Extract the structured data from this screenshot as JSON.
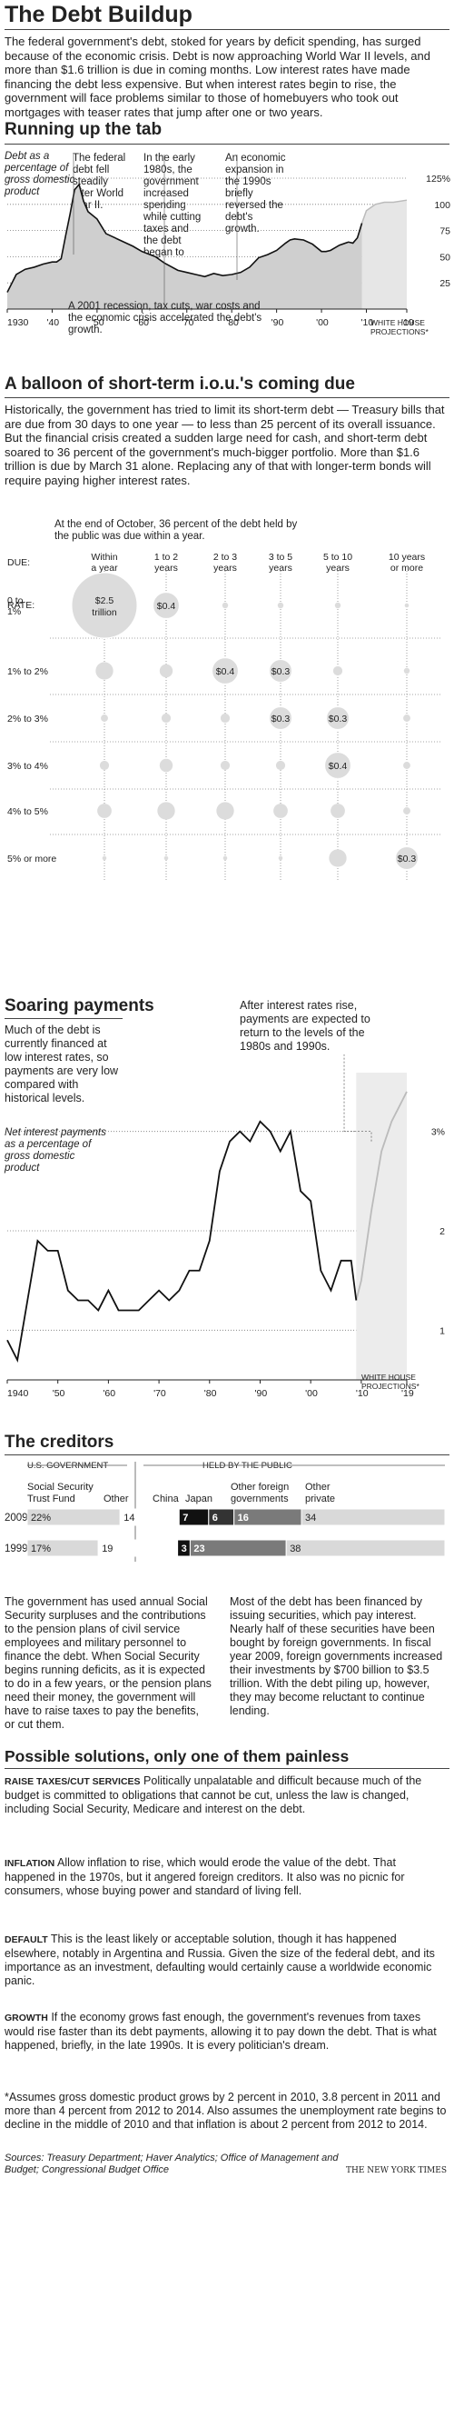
{
  "title": "The Debt Buildup",
  "intro": "The federal government's debt, stoked for years by deficit spending, has surged because of the economic crisis. Debt is now approaching World War II levels, and more than $1.6 trillion is due in coming months. Low interest rates have made financing the debt less expensive. But when interest rates begin to rise, the government will face problems similar to those of homebuyers who took out mortgages with teaser rates that jump after one or two years.",
  "section1": {
    "heading": "Running up the tab",
    "note": "Debt as a percentage of gross domestic product",
    "annotations": [
      "The federal debt fell steadily after World War II.",
      "In the early 1980s, the government increased spending while cutting taxes and the debt began to rise.",
      "An economic expansion in the 1990s briefly reversed the debt's growth.",
      "A 2001 recession, tax cuts, war costs and the economic crisis accelerated the debt's growth."
    ],
    "projection_label": "WHITE HOUSE PROJECTIONS*"
  },
  "section2": {
    "heading": "A balloon of short-term i.o.u.'s coming due",
    "text": "Historically, the government has tried to limit its short-term debt — Treasury bills that are due from 30 days to one year — to less than 25 percent of its overall issuance. But the financial crisis created a sudden large need for cash, and short-term debt soared to 36 percent of the government's much-bigger portfolio. More than $1.6 trillion is due by March 31 alone. Replacing any of that with longer-term bonds will require paying higher interest rates.",
    "callout": "At the end of October, 36 percent of the debt held by the public was due within a year.",
    "due_label": "DUE:",
    "rate_label": "RATE:"
  },
  "section3": {
    "heading": "Soaring payments",
    "text": "Much of the debt is currently financed at low interest rates, so payments are very low compared with historical levels.",
    "note": "Net interest payments as a percentage of gross domestic product",
    "annotation": "After interest rates rise, payments are expected to return to the levels of the 1980s and 1990s.",
    "projection_label": "WHITE HOUSE PROJECTIONS*"
  },
  "section4": {
    "heading": "The creditors",
    "us_gov": "U.S. GOVERNMENT",
    "held_public": "HELD BY THE PUBLIC",
    "col_ss": "Social Security Trust Fund",
    "col_other": "Other",
    "col_china": "China",
    "col_japan": "Japan",
    "col_foreign": "Other foreign governments",
    "col_private": "Other private",
    "rows": [
      {
        "year": "2009",
        "ss": "22%",
        "other": "14",
        "china": "7",
        "japan": "6",
        "foreign": "16",
        "private": "34"
      },
      {
        "year": "1999",
        "ss": "17%",
        "other": "19",
        "china": "3",
        "japan": "",
        "foreign": "23",
        "private": "38"
      }
    ],
    "para_left": "The government has used annual Social Security surpluses and the contributions to the pension plans of civil service employees and military personnel to finance the debt. When Social Security begins running deficits, as it is expected to do in a few years, or the pension plans need their money, the government will have to raise taxes to pay the benefits, or cut them.",
    "para_right": "Most of the debt has been financed by issuing securities, which pay interest. Nearly half of these securities have been bought by foreign governments. In fiscal year 2009, foreign governments increased their investments by $700 billion to $3.5 trillion. With the debt piling up, however, they may become reluctant to continue lending."
  },
  "section5": {
    "heading": "Possible solutions, only one of them painless",
    "items": [
      {
        "label": "RAISE TAXES/CUT SERVICES",
        "text": "Politically unpalatable and difficult because much of the budget is committed to obligations that cannot be cut, unless the law is changed, including Social Security, Medicare and interest on the debt."
      },
      {
        "label": "INFLATION",
        "text": "Allow inflation to rise, which would erode the value of the debt. That happened in the 1970s, but it angered foreign creditors. It also was no picnic for consumers, whose buying power and standard of living fell."
      },
      {
        "label": "DEFAULT",
        "text": "This is the least likely or acceptable solution, though it has happened elsewhere, notably in Argentina and Russia. Given the size of the federal debt, and its importance as an investment, defaulting would certainly cause a worldwide economic panic."
      },
      {
        "label": "GROWTH",
        "text": "If the economy grows fast enough, the government's revenues from taxes would rise faster than its debt payments, allowing it to pay down the debt. That is what happened, briefly, in the late 1990s. It is every politician's dream."
      }
    ],
    "footnote": "*Assumes gross domestic product grows by 2 percent in 2010, 3.8 percent in 2011 and more than 4 percent from 2012 to 2014. Also assumes the unemployment rate begins to decline in the middle of 2010 and that inflation is about 2 percent from 2012 to 2014.",
    "sources": "Sources: Treasury Department; Haver Analytics; Office of Management and Budget; Congressional Budget Office",
    "credit": "THE NEW YORK TIMES"
  },
  "chart_data": [
    {
      "type": "area",
      "xlim": [
        1930,
        2019
      ],
      "ylim": [
        0,
        125
      ],
      "x_ticks": [
        "1930",
        "'40",
        "'50",
        "'60",
        "'70",
        "'80",
        "'90",
        "'00",
        "'10",
        "'19"
      ],
      "y_ticks": [
        "125%",
        "100",
        "75",
        "50",
        "25"
      ],
      "x": [
        1930,
        1932,
        1934,
        1936,
        1938,
        1940,
        1941,
        1942,
        1943,
        1944,
        1945,
        1946,
        1947,
        1948,
        1950,
        1952,
        1955,
        1958,
        1960,
        1963,
        1965,
        1968,
        1970,
        1972,
        1974,
        1976,
        1978,
        1980,
        1982,
        1984,
        1986,
        1988,
        1990,
        1992,
        1993,
        1994,
        1996,
        1998,
        2000,
        2001,
        2002,
        2004,
        2006,
        2007,
        2008,
        2009
      ],
      "values": [
        16,
        33,
        38,
        40,
        43,
        45,
        45,
        48,
        70,
        91,
        114,
        119,
        103,
        93,
        86,
        72,
        66,
        60,
        55,
        50,
        44,
        37,
        35,
        33,
        31,
        34,
        32,
        33,
        35,
        40,
        49,
        52,
        56,
        63,
        66,
        67,
        66,
        62,
        55,
        55,
        56,
        61,
        64,
        63,
        68,
        82
      ],
      "projection": {
        "x": [
          2009,
          2010,
          2012,
          2014,
          2016,
          2019
        ],
        "values": [
          82,
          94,
          100,
          102,
          102,
          104
        ]
      }
    },
    {
      "type": "bubble",
      "categories": [
        "Within a year",
        "1 to 2 years",
        "2 to 3 years",
        "3 to 5 years",
        "5 to 10 years",
        "10 years or more"
      ],
      "rows": [
        "0 to 1%",
        "1% to 2%",
        "2% to 3%",
        "3% to 4%",
        "4% to 5%",
        "5% or more"
      ],
      "values": [
        [
          2.5,
          0.4,
          0.02,
          0.02,
          0.02,
          0.01
        ],
        [
          0.18,
          0.1,
          0.4,
          0.3,
          0.05,
          0.02
        ],
        [
          0.03,
          0.05,
          0.05,
          0.3,
          0.3,
          0.03
        ],
        [
          0.05,
          0.1,
          0.05,
          0.05,
          0.4,
          0.03
        ],
        [
          0.12,
          0.18,
          0.18,
          0.12,
          0.12,
          0.03
        ],
        [
          0.01,
          0.01,
          0.01,
          0.01,
          0.18,
          0.3
        ]
      ],
      "labels": [
        [
          "$2.5 trillion",
          "$0.4",
          "",
          "",
          "",
          ""
        ],
        [
          "",
          "",
          "$0.4",
          "$0.3",
          "",
          ""
        ],
        [
          "",
          "",
          "",
          "$0.3",
          "$0.3",
          ""
        ],
        [
          "",
          "",
          "",
          "",
          "$0.4",
          ""
        ],
        [
          "",
          "",
          "",
          "",
          "",
          ""
        ],
        [
          "",
          "",
          "",
          "",
          "",
          "$0.3"
        ]
      ]
    },
    {
      "type": "line",
      "xlim": [
        1940,
        2019
      ],
      "ylim": [
        0.5,
        3.5
      ],
      "x_ticks": [
        "1940",
        "'50",
        "'60",
        "'70",
        "'80",
        "'90",
        "'00",
        "'10",
        "'19"
      ],
      "y_ticks": [
        "3%",
        "2",
        "1"
      ],
      "x": [
        1940,
        1942,
        1944,
        1946,
        1948,
        1950,
        1952,
        1954,
        1956,
        1958,
        1960,
        1962,
        1964,
        1966,
        1968,
        1970,
        1972,
        1974,
        1976,
        1978,
        1980,
        1982,
        1984,
        1986,
        1988,
        1990,
        1992,
        1994,
        1996,
        1998,
        2000,
        2002,
        2004,
        2006,
        2008,
        2009
      ],
      "values": [
        0.9,
        0.7,
        1.3,
        1.9,
        1.8,
        1.8,
        1.4,
        1.3,
        1.3,
        1.2,
        1.4,
        1.2,
        1.2,
        1.2,
        1.3,
        1.4,
        1.3,
        1.4,
        1.6,
        1.6,
        1.9,
        2.6,
        2.9,
        3.0,
        2.9,
        3.1,
        3.0,
        2.8,
        3.0,
        2.4,
        2.3,
        1.6,
        1.4,
        1.7,
        1.7,
        1.3
      ],
      "projection": {
        "x": [
          2009,
          2010,
          2012,
          2014,
          2016,
          2019
        ],
        "values": [
          1.3,
          1.5,
          2.2,
          2.8,
          3.1,
          3.4
        ]
      }
    },
    {
      "type": "bar",
      "orientation": "horizontal-stacked",
      "categories": [
        "2009",
        "1999"
      ],
      "series": [
        {
          "name": "Social Security Trust Fund",
          "values": [
            22,
            17
          ]
        },
        {
          "name": "Other",
          "values": [
            14,
            19
          ]
        },
        {
          "name": "China",
          "values": [
            7,
            3
          ]
        },
        {
          "name": "Japan",
          "values": [
            6,
            0
          ]
        },
        {
          "name": "Other foreign governments",
          "values": [
            16,
            23
          ]
        },
        {
          "name": "Other private",
          "values": [
            34,
            38
          ]
        }
      ]
    }
  ]
}
